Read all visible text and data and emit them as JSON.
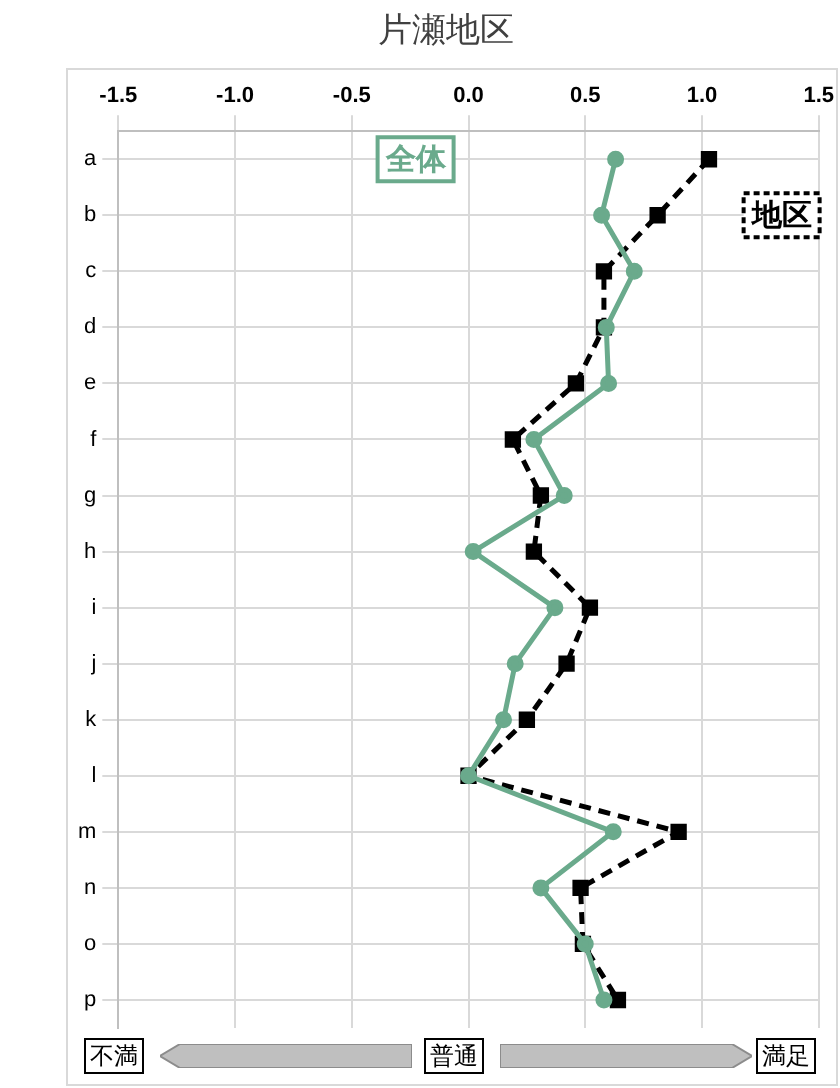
{
  "chart_data": {
    "type": "line",
    "orientation": "horizontal",
    "title": "片瀬地区",
    "categories": [
      "a",
      "b",
      "c",
      "d",
      "e",
      "f",
      "g",
      "h",
      "i",
      "j",
      "k",
      "l",
      "m",
      "n",
      "o",
      "p"
    ],
    "series": [
      {
        "name": "全体",
        "color": "#6aaa8c",
        "marker": "circle",
        "line_style": "solid",
        "values": [
          0.63,
          0.57,
          0.71,
          0.59,
          0.6,
          0.28,
          0.41,
          0.02,
          0.37,
          0.2,
          0.15,
          0.0,
          0.62,
          0.31,
          0.5,
          0.58
        ]
      },
      {
        "name": "地区",
        "color": "#000000",
        "marker": "square",
        "line_style": "dashed",
        "values": [
          1.03,
          0.81,
          0.58,
          0.58,
          0.46,
          0.19,
          0.31,
          0.28,
          0.52,
          0.42,
          0.25,
          0.0,
          0.9,
          0.48,
          0.49,
          0.64
        ]
      }
    ],
    "xlim": [
      -1.5,
      1.5
    ],
    "xticks": [
      {
        "value": -1.5,
        "label": "-1.5"
      },
      {
        "value": -1.0,
        "label": "-1.0"
      },
      {
        "value": -0.5,
        "label": "-0.5"
      },
      {
        "value": 0,
        "label": "0.0"
      },
      {
        "value": 0.5,
        "label": "0.5"
      },
      {
        "value": 1.0,
        "label": "1.0"
      },
      {
        "value": 1.5,
        "label": "1.5"
      }
    ],
    "grid": true,
    "legend": false,
    "annotations": [
      "不満",
      "普通",
      "満足"
    ]
  }
}
